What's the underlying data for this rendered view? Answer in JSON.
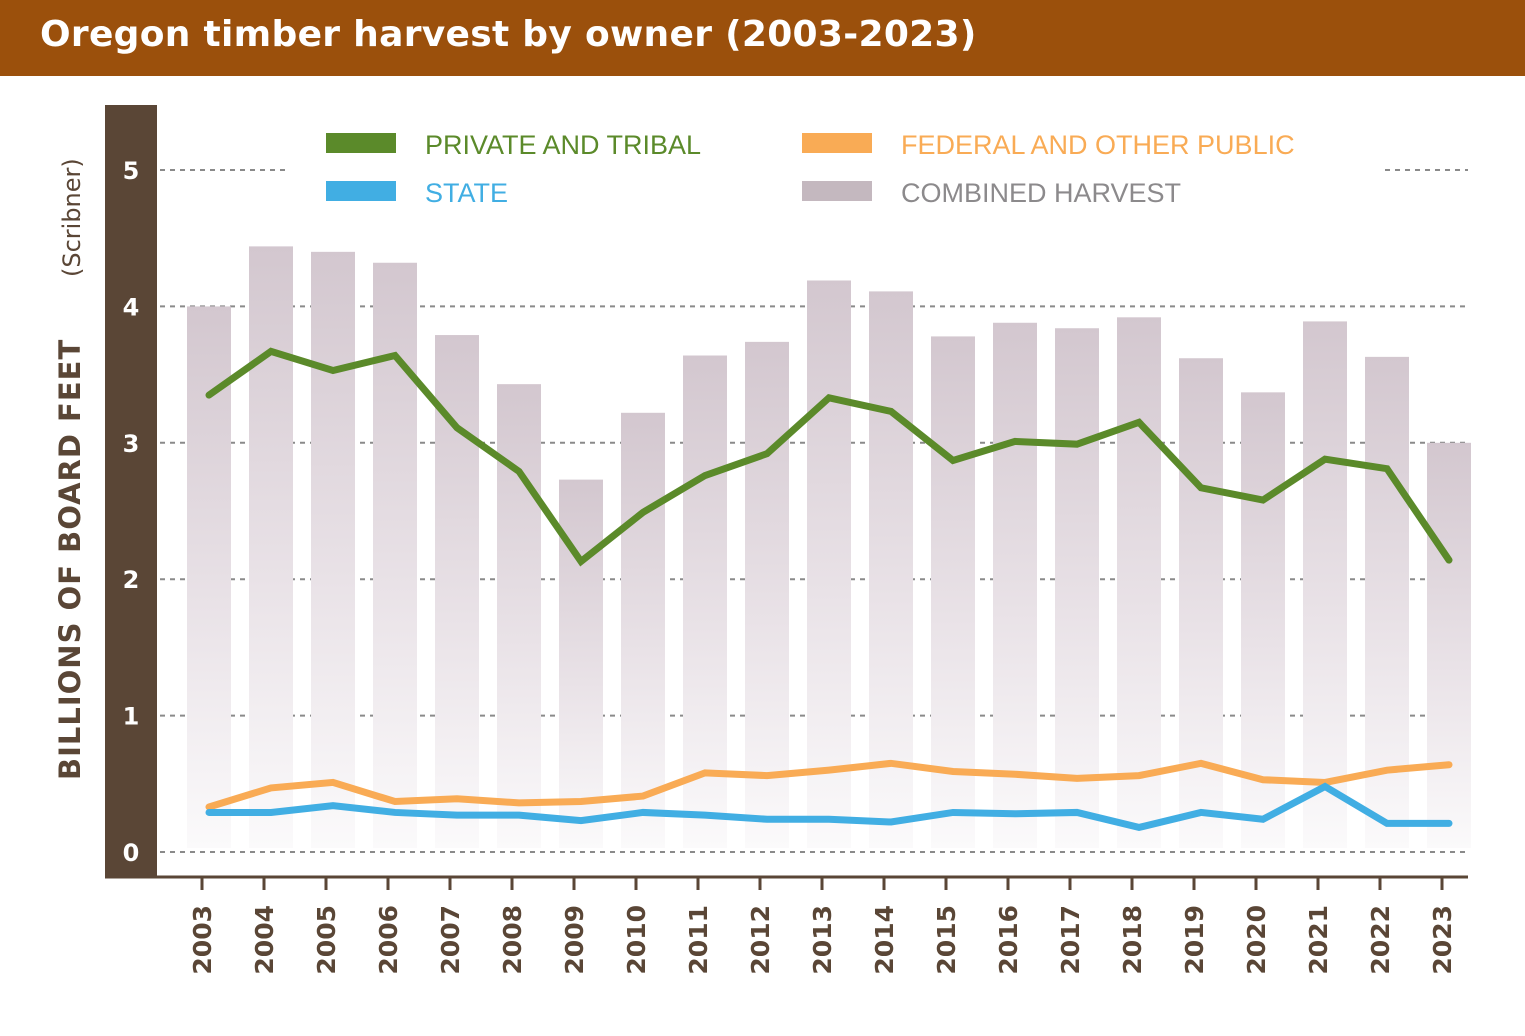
{
  "chart_data": {
    "type": "bar+line",
    "title": "Oregon timber harvest by owner (2003-2023)",
    "ylabel": "BILLIONS OF BOARD FEET",
    "ylabel_unit": "(Scribner)",
    "xlabel": "",
    "ylim": [
      0,
      5
    ],
    "yticks": [
      "0",
      "1",
      "2",
      "3",
      "4",
      "5"
    ],
    "grid": true,
    "legend_position": "top",
    "categories": [
      "2003",
      "2004",
      "2005",
      "2006",
      "2007",
      "2008",
      "2009",
      "2010",
      "2011",
      "2012",
      "2013",
      "2014",
      "2015",
      "2016",
      "2017",
      "2018",
      "2019",
      "2020",
      "2021",
      "2022",
      "2023"
    ],
    "series": [
      {
        "name": "COMBINED HARVEST",
        "kind": "bar",
        "color": "#c9bcc5",
        "text_color": "#8c8a8c",
        "values": [
          4.0,
          4.44,
          4.4,
          4.32,
          3.79,
          3.43,
          2.73,
          3.22,
          3.64,
          3.74,
          4.19,
          4.11,
          3.78,
          3.88,
          3.84,
          3.92,
          3.62,
          3.37,
          3.89,
          3.63,
          3.0
        ]
      },
      {
        "name": "PRIVATE AND TRIBAL",
        "kind": "line",
        "color": "#5b8a2a",
        "text_color": "#5b8a2a",
        "values": [
          3.35,
          3.67,
          3.53,
          3.64,
          3.11,
          2.79,
          2.13,
          2.49,
          2.76,
          2.92,
          3.33,
          3.23,
          2.87,
          3.01,
          2.99,
          3.15,
          2.67,
          2.58,
          2.88,
          2.81,
          2.14
        ]
      },
      {
        "name": "FEDERAL AND OTHER PUBLIC",
        "kind": "line",
        "color": "#f9ab55",
        "text_color": "#f9ab55",
        "values": [
          0.33,
          0.47,
          0.51,
          0.37,
          0.39,
          0.36,
          0.37,
          0.41,
          0.58,
          0.56,
          0.6,
          0.65,
          0.59,
          0.57,
          0.54,
          0.56,
          0.65,
          0.53,
          0.51,
          0.6,
          0.64
        ]
      },
      {
        "name": "STATE",
        "kind": "line",
        "color": "#41aee3",
        "text_color": "#41aee3",
        "values": [
          0.29,
          0.29,
          0.34,
          0.29,
          0.27,
          0.27,
          0.23,
          0.29,
          0.27,
          0.24,
          0.24,
          0.22,
          0.29,
          0.28,
          0.29,
          0.18,
          0.29,
          0.24,
          0.48,
          0.21,
          0.21
        ]
      }
    ]
  },
  "colors": {
    "title_bar": "#9b500c",
    "axis_band": "#5a4636"
  }
}
